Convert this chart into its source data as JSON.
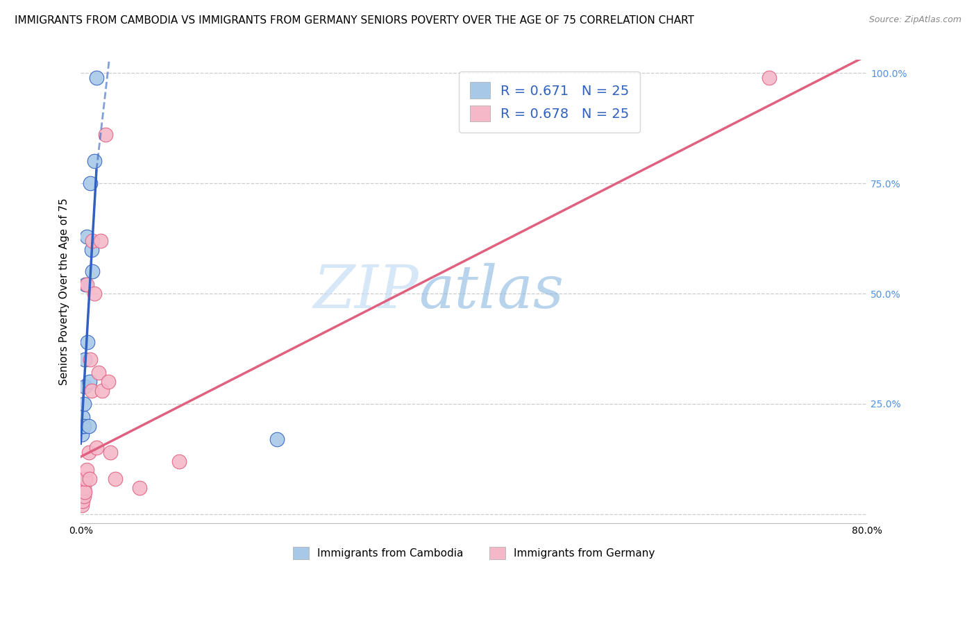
{
  "title": "IMMIGRANTS FROM CAMBODIA VS IMMIGRANTS FROM GERMANY SENIORS POVERTY OVER THE AGE OF 75 CORRELATION CHART",
  "source": "Source: ZipAtlas.com",
  "ylabel": "Seniors Poverty Over the Age of 75",
  "xlabel_cambodia": "Immigrants from Cambodia",
  "xlabel_germany": "Immigrants from Germany",
  "xlim": [
    0.0,
    0.8
  ],
  "ylim": [
    -0.02,
    1.03
  ],
  "yticks": [
    0.0,
    0.25,
    0.5,
    0.75,
    1.0
  ],
  "yticklabels_right": [
    "",
    "25.0%",
    "50.0%",
    "75.0%",
    "100.0%"
  ],
  "R_cambodia": 0.671,
  "N_cambodia": 25,
  "R_germany": 0.678,
  "N_germany": 25,
  "color_cambodia": "#a8c8e8",
  "color_germany": "#f5b8c8",
  "color_cambodia_line": "#3060c0",
  "color_germany_line": "#e06080",
  "color_right_axis": "#5090e0",
  "color_legend_text_blue": "#3060c0",
  "color_legend_text_black": "#333333",
  "watermark_zip": "ZIP",
  "watermark_atlas": "atlas",
  "background_color": "#ffffff",
  "grid_color": "#cccccc",
  "title_fontsize": 11,
  "axis_label_fontsize": 11,
  "tick_fontsize": 10,
  "legend_fontsize": 14,
  "cambodia_x": [
    0.0005,
    0.001,
    0.001,
    0.001,
    0.001,
    0.002,
    0.002,
    0.002,
    0.002,
    0.003,
    0.003,
    0.003,
    0.004,
    0.004,
    0.005,
    0.006,
    0.007,
    0.008,
    0.009,
    0.01,
    0.011,
    0.012,
    0.014,
    0.016,
    0.2
  ],
  "cambodia_y": [
    0.04,
    0.05,
    0.05,
    0.18,
    0.2,
    0.05,
    0.07,
    0.2,
    0.22,
    0.05,
    0.2,
    0.25,
    0.29,
    0.35,
    0.52,
    0.63,
    0.39,
    0.2,
    0.3,
    0.75,
    0.6,
    0.55,
    0.8,
    0.99,
    0.17
  ],
  "germany_x": [
    0.001,
    0.002,
    0.003,
    0.003,
    0.004,
    0.005,
    0.006,
    0.006,
    0.008,
    0.009,
    0.01,
    0.011,
    0.012,
    0.014,
    0.016,
    0.018,
    0.02,
    0.022,
    0.025,
    0.028,
    0.03,
    0.035,
    0.06,
    0.1,
    0.7
  ],
  "germany_y": [
    0.02,
    0.03,
    0.04,
    0.06,
    0.05,
    0.08,
    0.1,
    0.52,
    0.14,
    0.08,
    0.35,
    0.28,
    0.62,
    0.5,
    0.15,
    0.32,
    0.62,
    0.28,
    0.86,
    0.3,
    0.14,
    0.08,
    0.06,
    0.12,
    0.99
  ],
  "cam_line_x0": 0.0,
  "cam_line_y0": 0.16,
  "cam_line_x1": 0.016,
  "cam_line_y1": 0.78,
  "cam_line_ext_x1": 0.03,
  "cam_line_ext_y1": 1.05,
  "ger_line_x0": 0.0,
  "ger_line_y0": 0.13,
  "ger_line_x1": 0.8,
  "ger_line_y1": 1.04
}
